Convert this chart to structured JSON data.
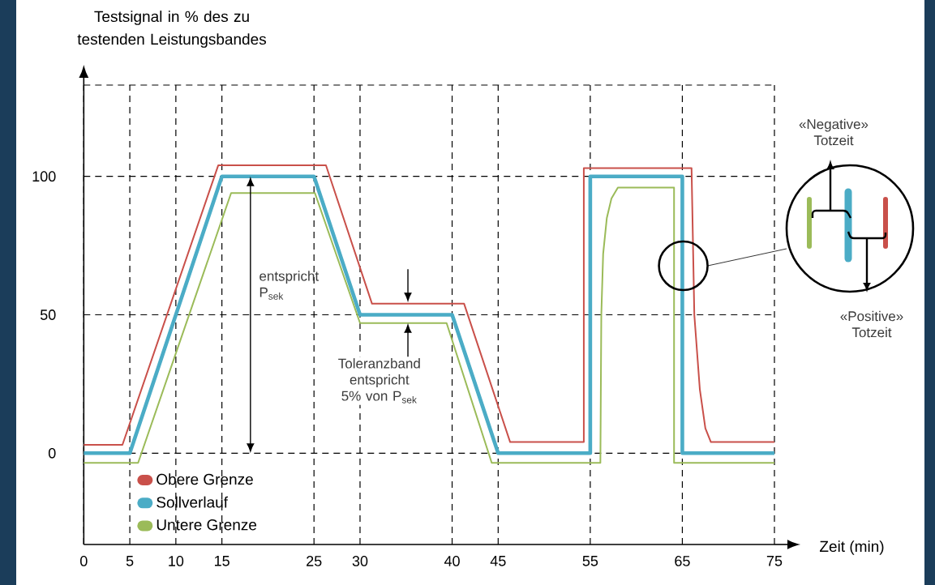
{
  "chart_data": {
    "type": "line",
    "xlabel": "Zeit (min)",
    "ylabel": "Testsignal in % des zu testenden Leistungsbandes",
    "xlim": [
      0,
      75
    ],
    "xticks": [
      0,
      5,
      10,
      15,
      25,
      30,
      40,
      45,
      55,
      65,
      75
    ],
    "ylim": [
      -33,
      133
    ],
    "yticks": [
      0,
      50,
      100,
      {
        "value": 133,
        "label": null
      }
    ],
    "grid": true,
    "legend": "bottom left",
    "marker": "none",
    "line_style": "solid",
    "series": [
      {
        "name": "Obere Grenze",
        "color": "#c9504a",
        "x": [
          0,
          4.2,
          14.6,
          26.3,
          31.3,
          41.3,
          46.3,
          54.3,
          54.3,
          66.0,
          66.3,
          66.9,
          67.5,
          68.1,
          75
        ],
        "values": [
          3,
          3,
          104,
          104,
          54,
          54,
          4,
          4,
          103,
          103,
          50,
          23,
          9,
          4,
          4
        ]
      },
      {
        "name": "Sollverlauf",
        "color": "#4bacc6",
        "x": [
          0,
          5,
          15,
          25,
          30,
          40,
          45,
          55,
          55,
          65,
          65,
          75
        ],
        "values": [
          0,
          0,
          100,
          100,
          50,
          50,
          0,
          0,
          100,
          100,
          0,
          0
        ]
      },
      {
        "name": "Untere Grenze",
        "color": "#9bbb59",
        "x": [
          0,
          5.9,
          16,
          25.1,
          30,
          39.4,
          44.3,
          56.1,
          56.2,
          56.4,
          56.8,
          57.3,
          58.0,
          64.1,
          64.1,
          75
        ],
        "values": [
          -3.5,
          -3.5,
          94,
          94,
          47,
          47,
          -3.5,
          -3.5,
          50,
          72,
          85,
          92,
          96,
          96,
          -3.5,
          -3.5
        ]
      }
    ],
    "annotations": [
      "entspricht P$_{sek}$",
      {
        "text": "Toleranzband entspricht 5% von P$_{sek}$",
        "x": 35.2,
        "y": 47
      },
      "«Negative» Totzeit",
      "«Positive» Totzeit"
    ]
  }
}
